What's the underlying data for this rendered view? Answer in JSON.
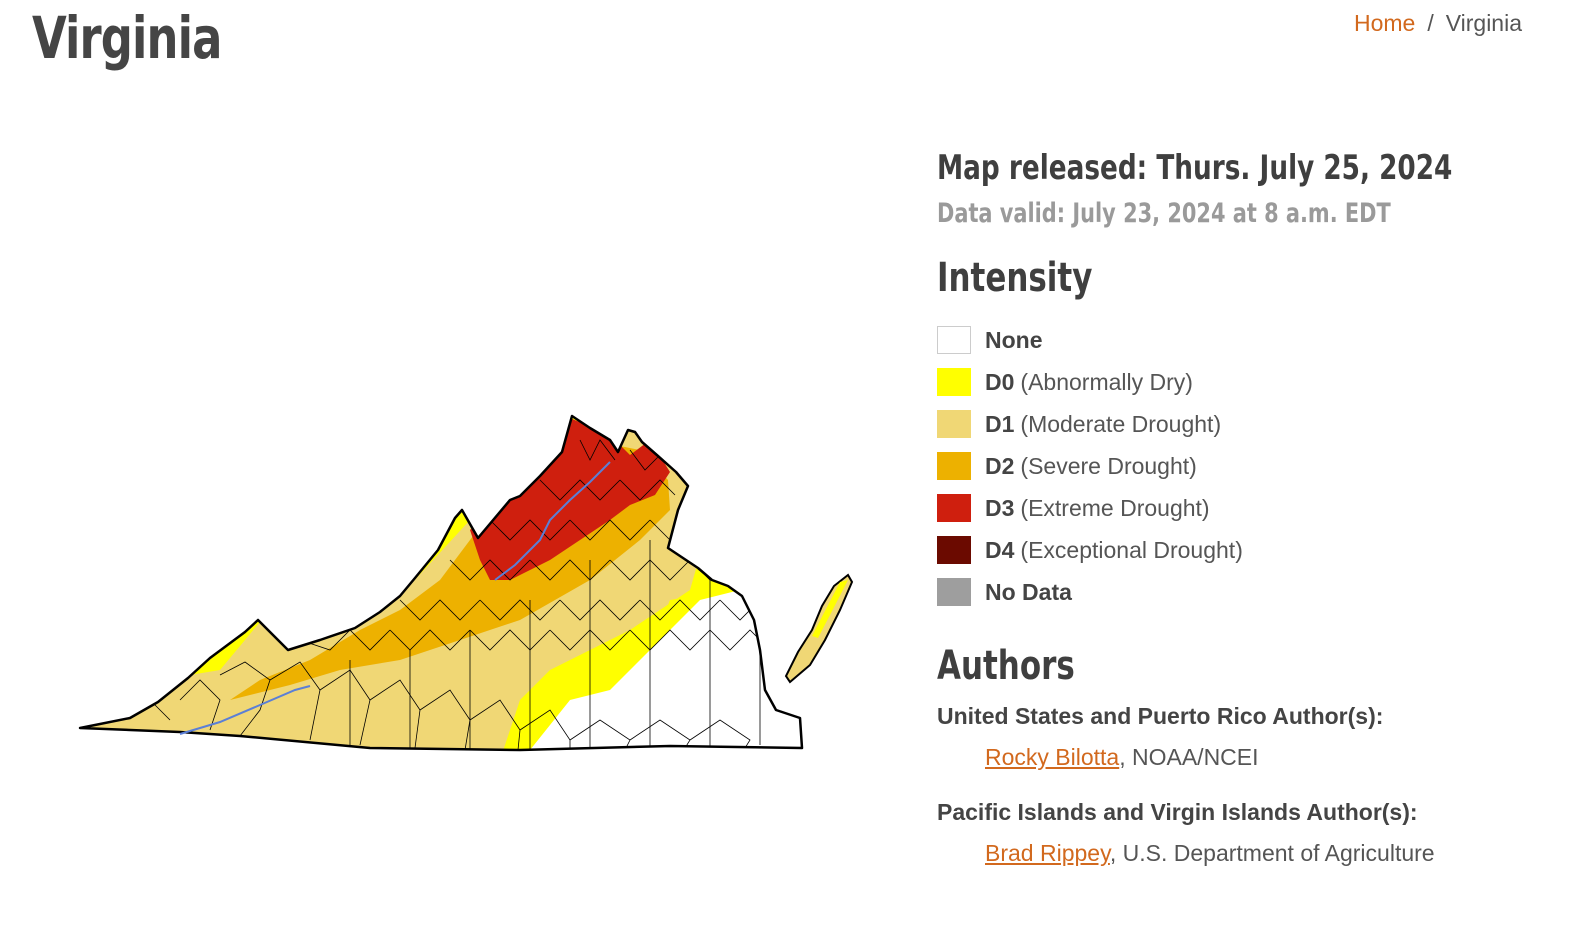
{
  "page": {
    "title": "Virginia"
  },
  "breadcrumb": {
    "home": "Home",
    "separator": "/",
    "current": "Virginia"
  },
  "map_info": {
    "released": "Map released: Thurs. July 25, 2024",
    "valid": "Data valid: July 23, 2024 at 8 a.m. EDT"
  },
  "intensity": {
    "heading": "Intensity",
    "items": [
      {
        "code": "None",
        "desc": "",
        "color": "#ffffff"
      },
      {
        "code": "D0",
        "desc": "(Abnormally Dry)",
        "color": "#ffff00"
      },
      {
        "code": "D1",
        "desc": "(Moderate Drought)",
        "color": "#f0d775"
      },
      {
        "code": "D2",
        "desc": "(Severe Drought)",
        "color": "#edb100"
      },
      {
        "code": "D3",
        "desc": "(Extreme Drought)",
        "color": "#cf1f0e"
      },
      {
        "code": "D4",
        "desc": "(Exceptional Drought)",
        "color": "#6b0a00"
      },
      {
        "code": "No Data",
        "desc": "",
        "color": "#9e9e9e"
      }
    ]
  },
  "authors": {
    "heading": "Authors",
    "groups": [
      {
        "label": "United States and Puerto Rico Author(s):",
        "name": "Rocky Bilotta",
        "affiliation": ", NOAA/NCEI"
      },
      {
        "label": "Pacific Islands and Virgin Islands Author(s):",
        "name": "Brad Rippey",
        "affiliation": ", U.S. Department of Agriculture"
      }
    ]
  }
}
